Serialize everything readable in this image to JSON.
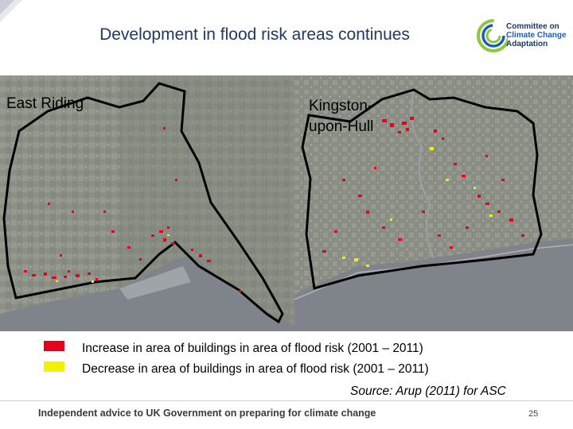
{
  "title": "Development in flood risk areas continues",
  "logo": {
    "line1": "Committee on",
    "line2": "Climate Change",
    "line3": "Adaptation"
  },
  "maps": {
    "left_label": "East Riding",
    "right_label_line1": "Kingston-",
    "right_label_line2": "upon-Hull"
  },
  "legend": [
    {
      "color": "#e8001c",
      "label": "Increase in area of buildings in area of flood risk (2001 – 2011)"
    },
    {
      "color": "#f2f200",
      "label": "Decrease in area of buildings in area of flood risk (2001 – 2011)"
    }
  ],
  "source": "Source: Arup (2011) for ASC",
  "footer": "Independent advice to UK Government on preparing for climate change",
  "page_number": "25",
  "colors": {
    "title": "#1f3864",
    "logo_green": "#8dc63f",
    "logo_blue": "#1f5fa8",
    "river": "#7e848a"
  }
}
